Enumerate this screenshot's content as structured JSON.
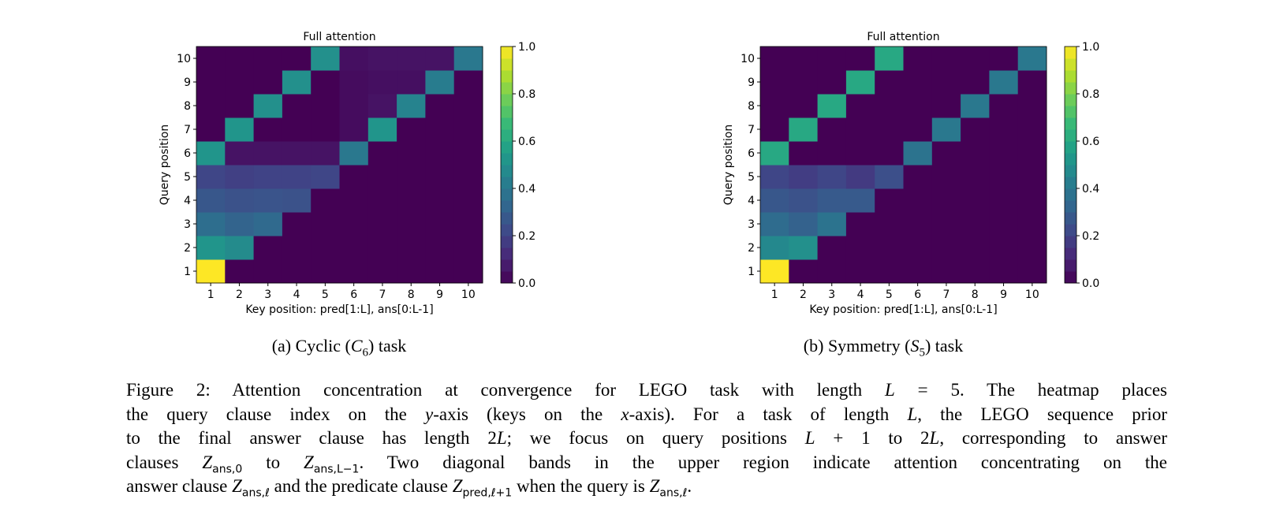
{
  "chart_data": [
    {
      "type": "heatmap",
      "title": "Full attention",
      "xlabel": "Key position: pred[1:L], ans[0:L-1]",
      "ylabel": "Query position",
      "x_ticks": [
        "1",
        "2",
        "3",
        "4",
        "5",
        "6",
        "7",
        "8",
        "9",
        "10"
      ],
      "y_ticks": [
        "1",
        "2",
        "3",
        "4",
        "5",
        "6",
        "7",
        "8",
        "9",
        "10"
      ],
      "colormap": "viridis",
      "colorbar_range": [
        0,
        1
      ],
      "colorbar_ticks": [
        "0.0",
        "0.2",
        "0.4",
        "0.6",
        "0.8",
        "1.0"
      ],
      "rows_by_query_position": [
        [
          1.0,
          0,
          0,
          0,
          0,
          0,
          0,
          0,
          0,
          0
        ],
        [
          0.52,
          0.48,
          0,
          0,
          0,
          0,
          0,
          0,
          0,
          0
        ],
        [
          0.36,
          0.32,
          0.34,
          0,
          0,
          0,
          0,
          0,
          0,
          0
        ],
        [
          0.27,
          0.25,
          0.26,
          0.25,
          0,
          0,
          0,
          0,
          0,
          0
        ],
        [
          0.21,
          0.19,
          0.2,
          0.2,
          0.21,
          0,
          0,
          0,
          0,
          0
        ],
        [
          0.52,
          0.05,
          0.05,
          0.05,
          0.05,
          0.4,
          0,
          0,
          0,
          0
        ],
        [
          0,
          0.52,
          0,
          0,
          0,
          0.03,
          0.52,
          0,
          0,
          0
        ],
        [
          0,
          0,
          0.5,
          0,
          0,
          0.03,
          0.05,
          0.45,
          0,
          0
        ],
        [
          0,
          0,
          0,
          0.5,
          0,
          0.03,
          0.04,
          0.04,
          0.42,
          0
        ],
        [
          0,
          0,
          0,
          0,
          0.5,
          0.04,
          0.05,
          0.05,
          0.05,
          0.4
        ]
      ]
    },
    {
      "type": "heatmap",
      "title": "Full attention",
      "xlabel": "Key position: pred[1:L], ans[0:L-1]",
      "ylabel": "Query position",
      "x_ticks": [
        "1",
        "2",
        "3",
        "4",
        "5",
        "6",
        "7",
        "8",
        "9",
        "10"
      ],
      "y_ticks": [
        "1",
        "2",
        "3",
        "4",
        "5",
        "6",
        "7",
        "8",
        "9",
        "10"
      ],
      "colormap": "viridis",
      "colorbar_range": [
        0,
        1
      ],
      "colorbar_ticks": [
        "0.0",
        "0.2",
        "0.4",
        "0.6",
        "0.8",
        "1.0"
      ],
      "rows_by_query_position": [
        [
          1.0,
          0,
          0,
          0,
          0,
          0,
          0,
          0,
          0,
          0
        ],
        [
          0.47,
          0.5,
          0,
          0,
          0,
          0,
          0,
          0,
          0,
          0
        ],
        [
          0.35,
          0.31,
          0.38,
          0,
          0,
          0,
          0,
          0,
          0,
          0
        ],
        [
          0.27,
          0.25,
          0.28,
          0.28,
          0,
          0,
          0,
          0,
          0,
          0
        ],
        [
          0.21,
          0.18,
          0.21,
          0.17,
          0.24,
          0,
          0,
          0,
          0,
          0
        ],
        [
          0.6,
          0,
          0,
          0,
          0,
          0.38,
          0,
          0,
          0,
          0
        ],
        [
          0,
          0.6,
          0,
          0,
          0,
          0,
          0.4,
          0,
          0,
          0
        ],
        [
          0,
          0,
          0.6,
          0,
          0,
          0,
          0,
          0.4,
          0,
          0
        ],
        [
          0,
          0,
          0,
          0.6,
          0,
          0,
          0,
          0,
          0.4,
          0
        ],
        [
          0,
          0,
          0,
          0,
          0.6,
          0,
          0,
          0,
          0,
          0.4
        ]
      ]
    }
  ],
  "subcaptions": {
    "a": {
      "prefix": "(a) Cyclic (",
      "sym": "C",
      "sub": "6",
      "suffix": ") task"
    },
    "b": {
      "prefix": "(b) Symmetry (",
      "sym": "S",
      "sub": "5",
      "suffix": ") task"
    }
  },
  "caption_lines": [
    [
      {
        "t": "Figure 2: Attention concentration at convergence for LEGO task with length "
      },
      {
        "t": "L",
        "s": "i"
      },
      {
        "t": " = 5. The heatmap places"
      }
    ],
    [
      {
        "t": "the query clause index on the "
      },
      {
        "t": "y",
        "s": "i"
      },
      {
        "t": "-axis (keys on the "
      },
      {
        "t": "x",
        "s": "i"
      },
      {
        "t": "-axis). For a task of length "
      },
      {
        "t": "L",
        "s": "i"
      },
      {
        "t": ", the LEGO sequence prior"
      }
    ],
    [
      {
        "t": "to the final answer clause has length 2"
      },
      {
        "t": "L",
        "s": "i"
      },
      {
        "t": "; we focus on query positions "
      },
      {
        "t": "L",
        "s": "i"
      },
      {
        "t": " + 1 to 2"
      },
      {
        "t": "L",
        "s": "i"
      },
      {
        "t": ", corresponding to answer"
      }
    ],
    [
      {
        "t": "clauses "
      },
      {
        "t": "Z",
        "s": "i"
      },
      {
        "t": "ans,0",
        "s": "sub"
      },
      {
        "t": " to "
      },
      {
        "t": "Z",
        "s": "i"
      },
      {
        "t": "ans,L−1",
        "s": "sub"
      },
      {
        "t": ". Two diagonal bands in the upper region indicate attention concentrating on the"
      }
    ],
    [
      {
        "t": "answer clause "
      },
      {
        "t": "Z",
        "s": "i"
      },
      {
        "t": "ans,ℓ",
        "s": "sub"
      },
      {
        "t": " and the predicate clause "
      },
      {
        "t": "Z",
        "s": "i"
      },
      {
        "t": "pred,ℓ+1",
        "s": "sub"
      },
      {
        "t": " when the query is "
      },
      {
        "t": "Z",
        "s": "i"
      },
      {
        "t": "ans,ℓ",
        "s": "sub"
      },
      {
        "t": "."
      }
    ]
  ]
}
